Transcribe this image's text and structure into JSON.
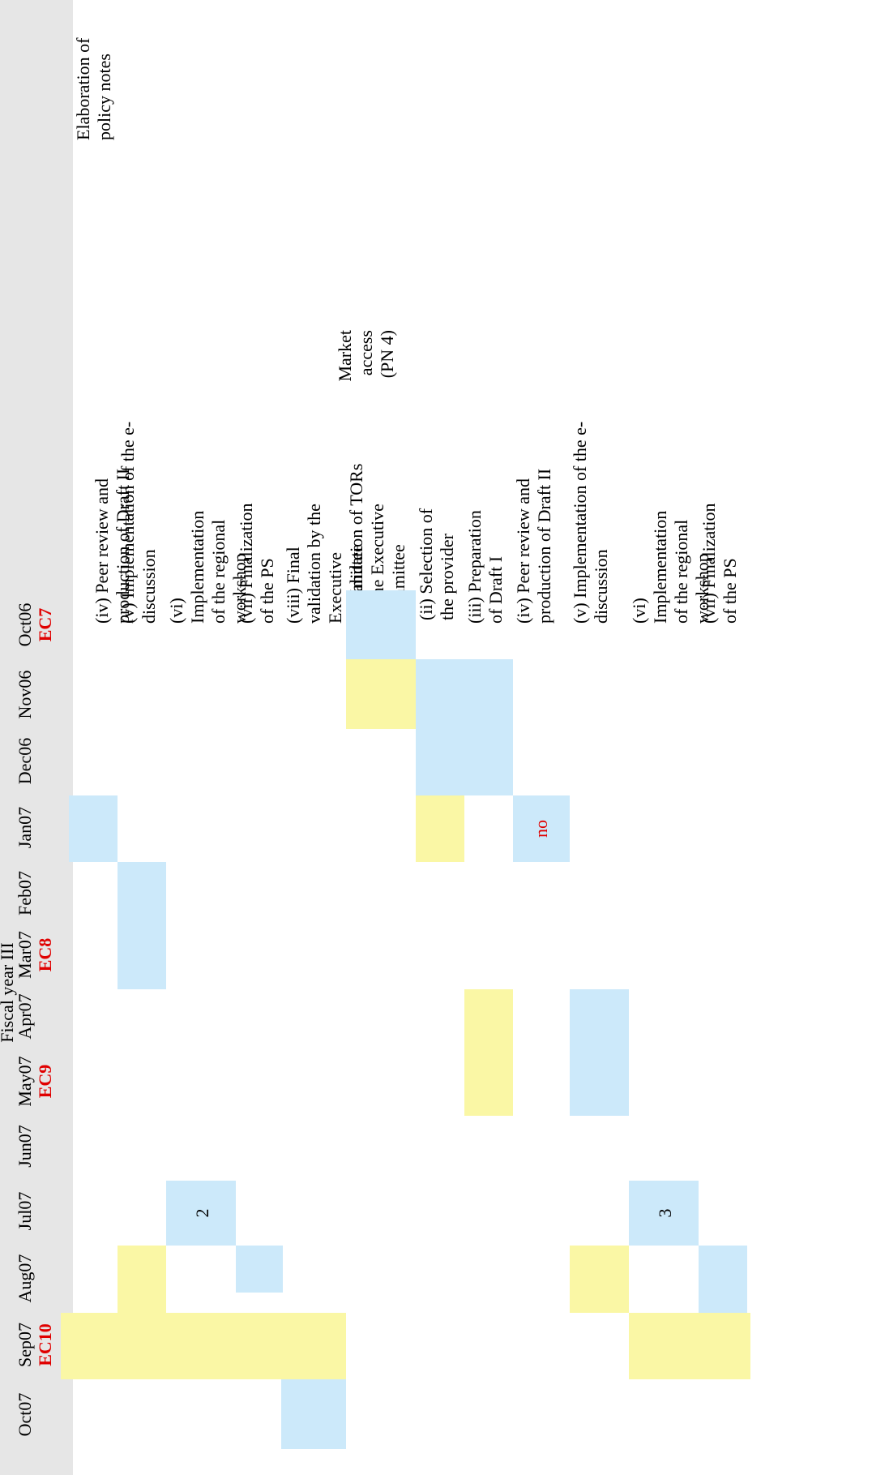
{
  "header": {
    "fiscal_year": "Fiscal year III",
    "months": [
      "Oct06",
      "Nov06",
      "Dec06",
      "Jan07",
      "Feb07",
      "Mar07",
      "Apr07",
      "May07",
      "Jun07",
      "Jul07",
      "Aug07",
      "Sep07",
      "Oct07"
    ],
    "ec_markers": {
      "oct06": "EC7",
      "mar07": "EC8",
      "may07": "EC9",
      "sep07": "EC10"
    }
  },
  "groups": {
    "policy_notes": "Elaboration of policy notes",
    "market_access": "Market access (PN 4)"
  },
  "tasks": [
    "(iv) Peer review and production of Draft II",
    "(v) Implementation of the e-discussion",
    "(vi) Implementation of the regional workshop",
    "(vii) Finalization of the PS",
    "(viii) Final validation by the Executive Committee",
    "(i) Validation of TORs by the Executive Committee",
    "(ii) Selection of the provider",
    "(iii) Preparation of Draft I",
    "(iv) Peer review and production of Draft II",
    "(v) Implementation of the e-discussion",
    "(vi) Implementation of the regional workshop",
    "(vii) Finalization of the PS"
  ],
  "annotations": {
    "workshop_pn3": "2",
    "draft2_pn4": "no",
    "workshop_pn4": "3"
  },
  "colors": {
    "blue": "#cce9fa",
    "yellow": "#faf7a5",
    "ec_red": "#e00000",
    "header_bg": "#e6e6e6"
  }
}
